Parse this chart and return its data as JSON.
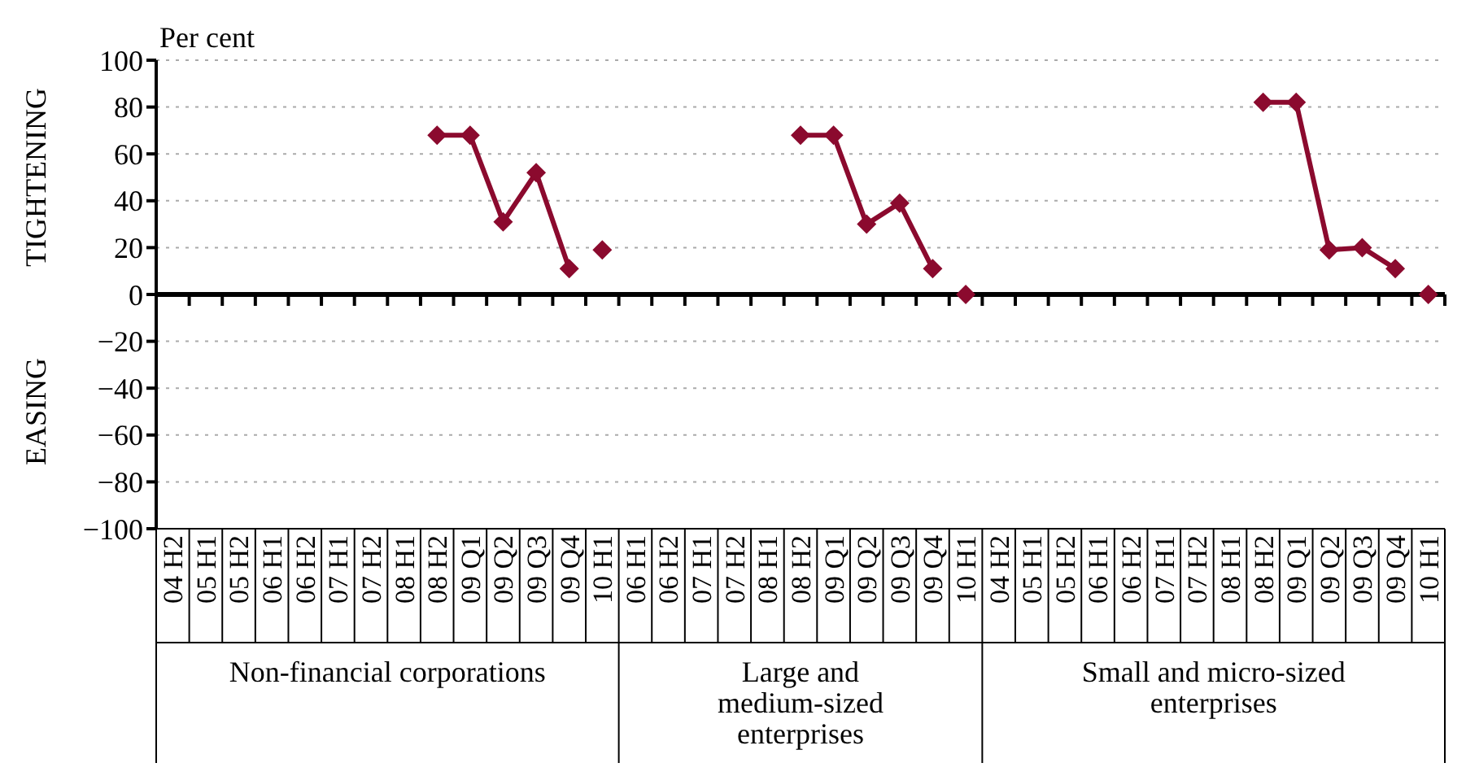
{
  "chart_data": {
    "type": "line",
    "ylabel": "Per cent",
    "categories": [
      "04 H2",
      "05 H1",
      "05 H2",
      "06 H1",
      "06 H2",
      "07 H1",
      "07 H2",
      "08 H1",
      "08 H2",
      "09 Q1",
      "09 Q2",
      "09 Q3",
      "09 Q4",
      "10 H1",
      "06 H1",
      "06 H2",
      "07 H1",
      "07 H2",
      "08 H1",
      "08 H2",
      "09 Q1",
      "09 Q2",
      "09 Q3",
      "09 Q4",
      "10 H1",
      "04 H2",
      "05 H1",
      "05 H2",
      "06 H1",
      "06 H2",
      "07 H1",
      "07 H2",
      "08 H1",
      "08 H2",
      "09 Q1",
      "09 Q2",
      "09 Q3",
      "09 Q4",
      "10 H1"
    ],
    "series": [
      {
        "color": "#8b0a2e",
        "values": [
          null,
          null,
          null,
          null,
          null,
          null,
          null,
          null,
          68,
          68,
          31,
          52,
          11,
          null,
          null,
          null,
          null,
          null,
          null,
          68,
          68,
          30,
          39,
          11,
          null,
          null,
          null,
          null,
          null,
          null,
          null,
          null,
          null,
          82,
          82,
          19,
          20,
          11,
          null
        ]
      },
      {
        "type": "scatter",
        "color": "#8b0a2e",
        "values": [
          null,
          null,
          null,
          null,
          null,
          null,
          null,
          null,
          null,
          null,
          null,
          null,
          null,
          19,
          null,
          null,
          null,
          null,
          null,
          null,
          null,
          null,
          null,
          null,
          0,
          null,
          null,
          null,
          null,
          null,
          null,
          null,
          null,
          null,
          null,
          null,
          null,
          null,
          0
        ]
      }
    ],
    "ylim": [
      -100,
      100
    ],
    "yticks": [
      {
        "value": -100,
        "label": "−100"
      },
      {
        "value": -80,
        "label": "−80"
      },
      {
        "value": -60,
        "label": "−60"
      },
      {
        "value": -40,
        "label": "−40"
      },
      {
        "value": -20,
        "label": "−20"
      },
      0,
      20,
      40,
      60,
      80,
      100
    ],
    "grid": "y",
    "marker": "diamond",
    "line_style": "solid",
    "annotations": [
      "Non-financial corporations",
      "Large and\nmedium-sized\nenterprises",
      "Small and micro-sized\nenterprises",
      "TIGHTENING",
      "EASING"
    ]
  }
}
